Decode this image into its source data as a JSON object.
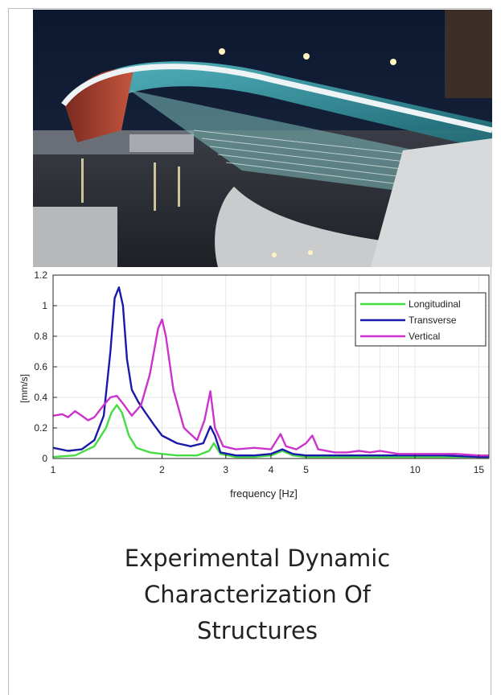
{
  "photo": {
    "subject": "bridge-photo"
  },
  "chart_data": {
    "type": "line",
    "title": "",
    "xlabel": "frequency [Hz]",
    "ylabel": "[mm/s]",
    "xscale": "log",
    "xlim": [
      1,
      16
    ],
    "ylim": [
      0,
      1.2
    ],
    "xticks": [
      1,
      2,
      3,
      4,
      5,
      10,
      15
    ],
    "yticks": [
      0,
      0.2,
      0.4,
      0.6,
      0.8,
      1,
      1.2
    ],
    "ytick_labels": [
      "0",
      "0.2",
      "0.4",
      "0.6",
      "0.8",
      "1",
      "1.2"
    ],
    "grid": true,
    "legend_position": "top-right",
    "series": [
      {
        "name": "Longitudinal",
        "color": "#44dd44",
        "x": [
          1.0,
          1.15,
          1.3,
          1.4,
          1.45,
          1.5,
          1.55,
          1.62,
          1.7,
          1.85,
          2.0,
          2.2,
          2.5,
          2.7,
          2.78,
          2.9,
          3.2,
          3.6,
          4.0,
          4.3,
          4.6,
          5.0,
          6.0,
          8.0,
          10.0,
          12.0,
          15.0,
          16.0
        ],
        "y": [
          0.01,
          0.02,
          0.08,
          0.2,
          0.3,
          0.35,
          0.3,
          0.15,
          0.07,
          0.04,
          0.03,
          0.02,
          0.02,
          0.05,
          0.1,
          0.03,
          0.01,
          0.01,
          0.02,
          0.05,
          0.02,
          0.01,
          0.01,
          0.01,
          0.01,
          0.01,
          0.01,
          0.01
        ]
      },
      {
        "name": "Transverse",
        "color": "#1a1aaa",
        "x": [
          1.0,
          1.1,
          1.2,
          1.3,
          1.38,
          1.44,
          1.48,
          1.52,
          1.56,
          1.6,
          1.65,
          1.72,
          1.8,
          1.9,
          2.0,
          2.2,
          2.4,
          2.6,
          2.72,
          2.8,
          2.9,
          3.2,
          3.6,
          4.0,
          4.3,
          4.6,
          5.0,
          6.0,
          8.0,
          10.0,
          12.0,
          15.0,
          16.0
        ],
        "y": [
          0.07,
          0.05,
          0.06,
          0.12,
          0.28,
          0.7,
          1.05,
          1.12,
          1.0,
          0.65,
          0.45,
          0.37,
          0.3,
          0.22,
          0.15,
          0.1,
          0.08,
          0.1,
          0.21,
          0.15,
          0.04,
          0.02,
          0.02,
          0.03,
          0.06,
          0.03,
          0.02,
          0.02,
          0.02,
          0.02,
          0.02,
          0.01,
          0.01
        ]
      },
      {
        "name": "Vertical",
        "color": "#cc33cc",
        "x": [
          1.0,
          1.06,
          1.1,
          1.15,
          1.2,
          1.25,
          1.3,
          1.38,
          1.44,
          1.5,
          1.56,
          1.65,
          1.75,
          1.85,
          1.95,
          2.0,
          2.05,
          2.15,
          2.3,
          2.5,
          2.62,
          2.72,
          2.8,
          2.95,
          3.2,
          3.6,
          4.0,
          4.25,
          4.4,
          4.7,
          5.0,
          5.2,
          5.4,
          6.0,
          6.5,
          7.0,
          7.5,
          8.0,
          9.0,
          10.0,
          11.0,
          12.0,
          13.0,
          15.0,
          16.0
        ],
        "y": [
          0.28,
          0.29,
          0.27,
          0.31,
          0.28,
          0.25,
          0.27,
          0.35,
          0.4,
          0.41,
          0.36,
          0.28,
          0.35,
          0.55,
          0.85,
          0.91,
          0.8,
          0.45,
          0.2,
          0.12,
          0.25,
          0.44,
          0.2,
          0.08,
          0.06,
          0.07,
          0.06,
          0.16,
          0.08,
          0.06,
          0.1,
          0.15,
          0.06,
          0.04,
          0.04,
          0.05,
          0.04,
          0.05,
          0.03,
          0.03,
          0.03,
          0.03,
          0.03,
          0.02,
          0.02
        ]
      }
    ]
  },
  "title_lines": [
    "Experimental Dynamic",
    "Characterization Of",
    "Structures"
  ]
}
